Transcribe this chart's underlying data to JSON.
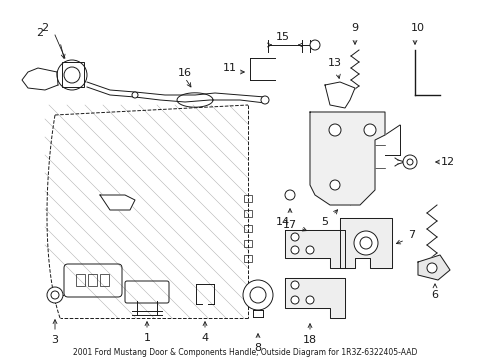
{
  "bg_color": "#ffffff",
  "fig_width": 4.89,
  "fig_height": 3.6,
  "dpi": 100,
  "line_color": "#1a1a1a",
  "lw": 0.7
}
